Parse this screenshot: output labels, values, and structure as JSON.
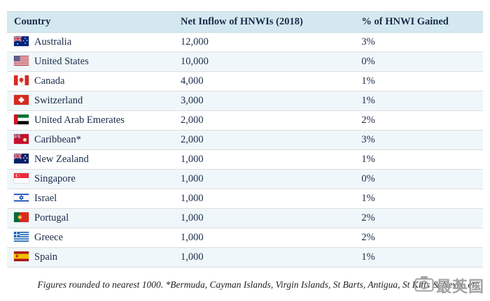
{
  "colors": {
    "header_bg": "#d3e9ef",
    "row_alt": "#f0f7fa",
    "text": "#1a2b49",
    "border": "#dedede"
  },
  "table": {
    "headers": [
      "Country",
      "Net Inflow of HNWIs (2018)",
      "% of HNWI Gained"
    ],
    "rows": [
      {
        "flag": "australia",
        "country": "Australia",
        "inflow": "12,000",
        "pct": "3%"
      },
      {
        "flag": "us",
        "country": "United States",
        "inflow": "10,000",
        "pct": "0%"
      },
      {
        "flag": "canada",
        "country": "Canada",
        "inflow": "4,000",
        "pct": "1%"
      },
      {
        "flag": "switzerland",
        "country": "Switzerland",
        "inflow": "3,000",
        "pct": "1%"
      },
      {
        "flag": "uae",
        "country": "United Arab Emerates",
        "inflow": "2,000",
        "pct": "2%"
      },
      {
        "flag": "caribbean",
        "country": "Caribbean*",
        "inflow": "2,000",
        "pct": "3%"
      },
      {
        "flag": "newzealand",
        "country": "New Zealand",
        "inflow": "1,000",
        "pct": "1%"
      },
      {
        "flag": "singapore",
        "country": "Singapore",
        "inflow": "1,000",
        "pct": "0%"
      },
      {
        "flag": "israel",
        "country": "Israel",
        "inflow": "1,000",
        "pct": "1%"
      },
      {
        "flag": "portugal",
        "country": "Portugal",
        "inflow": "1,000",
        "pct": "2%"
      },
      {
        "flag": "greece",
        "country": "Greece",
        "inflow": "1,000",
        "pct": "2%"
      },
      {
        "flag": "spain",
        "country": "Spain",
        "inflow": "1,000",
        "pct": "1%"
      }
    ]
  },
  "footnote": "Figures rounded to nearest 1000. *Bermuda, Cayman Islands, Virgin Islands, St Barts, Antigua, St Kitts & Nevis, etc",
  "watermark": {
    "text": "最英国"
  },
  "chart_data": {
    "type": "table",
    "title": "Net Inflow of HNWIs (2018)",
    "columns": [
      "Country",
      "Net Inflow of HNWIs (2018)",
      "% of HNWI Gained"
    ],
    "rows": [
      [
        "Australia",
        12000,
        "3%"
      ],
      [
        "United States",
        10000,
        "0%"
      ],
      [
        "Canada",
        4000,
        "1%"
      ],
      [
        "Switzerland",
        3000,
        "1%"
      ],
      [
        "United Arab Emerates",
        2000,
        "2%"
      ],
      [
        "Caribbean*",
        2000,
        "3%"
      ],
      [
        "New Zealand",
        1000,
        "1%"
      ],
      [
        "Singapore",
        1000,
        "0%"
      ],
      [
        "Israel",
        1000,
        "1%"
      ],
      [
        "Portugal",
        1000,
        "2%"
      ],
      [
        "Greece",
        1000,
        "2%"
      ],
      [
        "Spain",
        1000,
        "1%"
      ]
    ],
    "footnote": "Figures rounded to nearest 1000. *Bermuda, Cayman Islands, Virgin Islands, St Barts, Antigua, St Kitts & Nevis, etc"
  }
}
